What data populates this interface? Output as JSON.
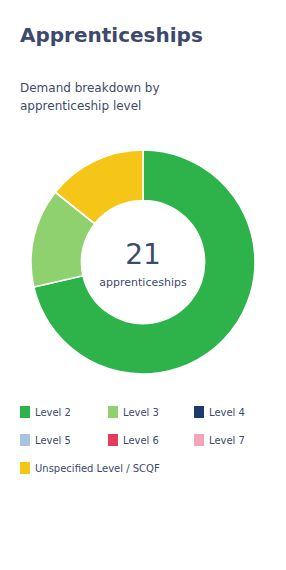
{
  "chart_data": {
    "type": "donut",
    "title": "Apprenticeships",
    "subtitle": "Demand breakdown by\napprenticeship level",
    "annotations": [
      "21",
      "apprenticeships"
    ],
    "categories": [
      "Level 2",
      "Level 3",
      "Level 4",
      "Level 5",
      "Level 6",
      "Level 7",
      "Unspecified Level / SCQF"
    ],
    "values": [
      15,
      3,
      0.001,
      0.001,
      0.001,
      0.001,
      3
    ],
    "colors": [
      "#2db34a",
      "#8ed16e",
      "#1a3c6b",
      "#a8c4e0",
      "#e63c5a",
      "#f4a6b8",
      "#f5c518"
    ],
    "legend": "bottom"
  }
}
